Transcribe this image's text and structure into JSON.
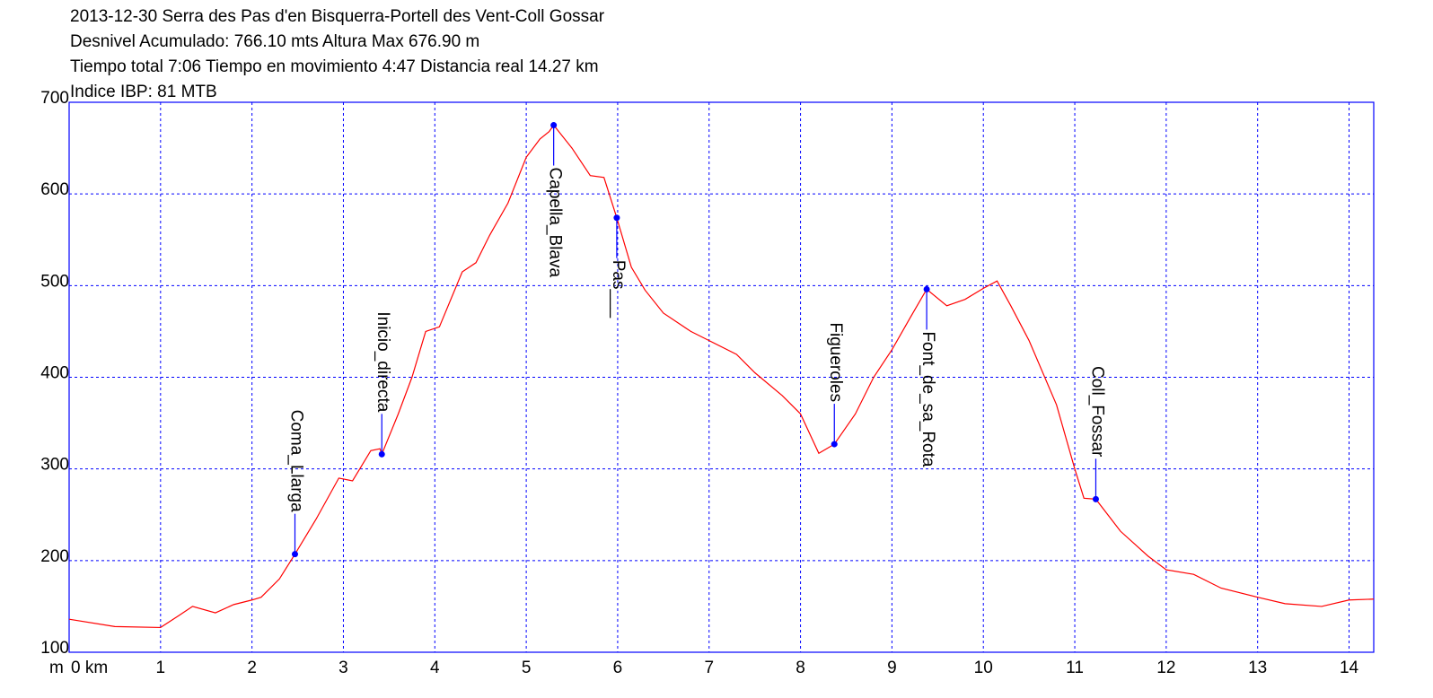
{
  "chart_data": {
    "type": "line",
    "title_lines": [
      "2013-12-30 Serra des Pas d'en Bisquerra-Portell des Vent-Coll Gossar",
      "Desnivel Acumulado: 766.10 mts  Altura Max 676.90 m",
      "Tiempo total 7:06 Tiempo en movimiento 4:47 Distancia real 14.27 km",
      "Indice IBP: 81 MTB"
    ],
    "ylabel": "m",
    "xlim": [
      0,
      14.27
    ],
    "ylim": [
      100,
      700
    ],
    "xticks": [
      {
        "value": 0,
        "label": "0 km"
      },
      1,
      2,
      3,
      4,
      5,
      6,
      7,
      8,
      9,
      10,
      11,
      12,
      13,
      14
    ],
    "yticks": [
      100,
      200,
      300,
      400,
      500,
      600,
      700
    ],
    "grid": true,
    "series": [
      {
        "name": "Altura",
        "color": "#ff0000",
        "x": [
          0,
          0.5,
          1.0,
          1.2,
          1.35,
          1.6,
          1.8,
          2.0,
          2.1,
          2.3,
          2.47,
          2.7,
          2.95,
          3.1,
          3.3,
          3.4,
          3.42,
          3.6,
          3.75,
          3.9,
          4.05,
          4.3,
          4.45,
          4.6,
          4.8,
          5.0,
          5.15,
          5.25,
          5.3,
          5.5,
          5.7,
          5.85,
          5.99,
          6.15,
          6.3,
          6.5,
          6.8,
          7.0,
          7.3,
          7.5,
          7.8,
          8.0,
          8.2,
          8.37,
          8.6,
          8.8,
          9.0,
          9.2,
          9.38,
          9.6,
          9.8,
          10.0,
          10.15,
          10.3,
          10.5,
          10.8,
          11.0,
          11.1,
          11.23,
          11.5,
          11.8,
          12.0,
          12.3,
          12.6,
          13.0,
          13.3,
          13.7,
          14.0,
          14.27
        ],
        "values": [
          136,
          128,
          127,
          140,
          150,
          143,
          152,
          157,
          160,
          180,
          207,
          245,
          290,
          287,
          320,
          322,
          316,
          360,
          400,
          450,
          455,
          515,
          525,
          555,
          590,
          640,
          660,
          668,
          675,
          650,
          620,
          618,
          574,
          520,
          495,
          470,
          450,
          440,
          425,
          405,
          380,
          360,
          317,
          327,
          360,
          400,
          430,
          465,
          496,
          478,
          485,
          497,
          505,
          478,
          440,
          370,
          300,
          268,
          267,
          232,
          205,
          190,
          185,
          170,
          160,
          153,
          150,
          157,
          158
        ]
      }
    ],
    "waypoints": [
      {
        "label": "Coma_Llarga",
        "x": 2.47,
        "y": 207,
        "side": "above"
      },
      {
        "label": "Inicio_directa",
        "x": 3.42,
        "y": 316,
        "side": "above"
      },
      {
        "label": "Capella_Blava",
        "x": 5.3,
        "y": 675,
        "side": "below"
      },
      {
        "label": "Pas___",
        "x": 5.99,
        "y": 574,
        "side": "below"
      },
      {
        "label": "Figueroles",
        "x": 8.37,
        "y": 327,
        "side": "above"
      },
      {
        "label": "Font_de_sa_Rota",
        "x": 9.38,
        "y": 496,
        "side": "below"
      },
      {
        "label": "Coll_Fossar",
        "x": 11.23,
        "y": 267,
        "side": "above"
      }
    ],
    "waypoint_color": "#0000ff",
    "grid_color": "#0000ff"
  }
}
